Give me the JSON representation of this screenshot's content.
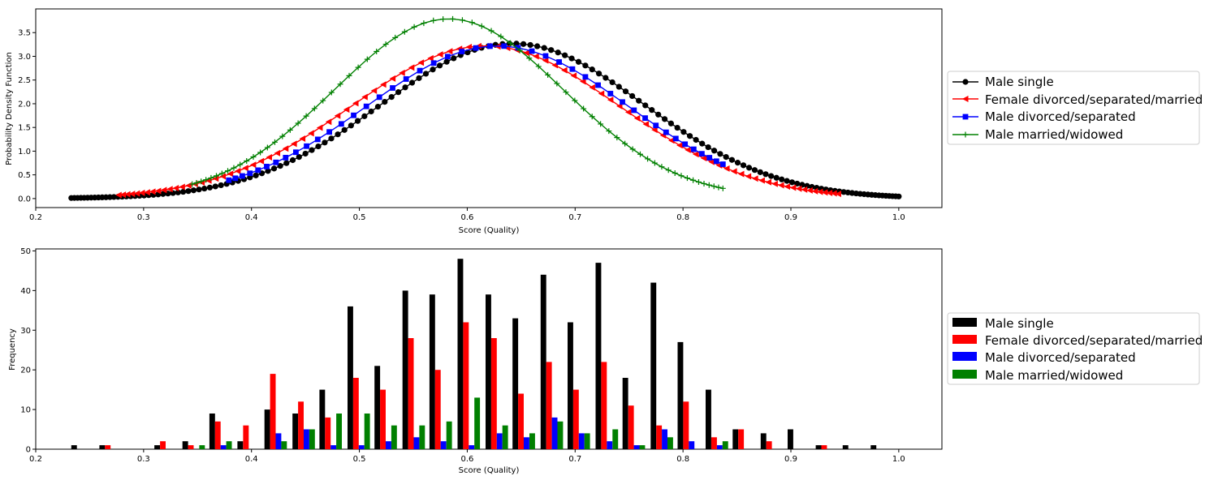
{
  "colors": {
    "male_single": "#000000",
    "female_dsm": "#ff0000",
    "male_ds": "#0000ff",
    "male_mw": "#008000"
  },
  "chart_data": [
    {
      "type": "line",
      "xlabel": "Score (Quality)",
      "ylabel": "Probability Density Function",
      "xlim": [
        0.2,
        1.04
      ],
      "ylim": [
        -0.19,
        4.0
      ],
      "xticks": [
        "0.2",
        "0.3",
        "0.4",
        "0.5",
        "0.6",
        "0.7",
        "0.8",
        "0.9",
        "1.0"
      ],
      "yticks": [
        "0.0",
        "0.5",
        "1.0",
        "1.5",
        "2.0",
        "2.5",
        "3.0",
        "3.5"
      ],
      "legend_position": "right",
      "series": [
        {
          "name": "Male single",
          "marker": "circle",
          "color": "#000000",
          "mean": 0.642,
          "sd": 0.122,
          "peak": 3.27,
          "x_range": [
            0.233,
            1.0
          ],
          "n_points": 150
        },
        {
          "name": "Female divorced/separated/married",
          "marker": "triangle-left",
          "color": "#ff0000",
          "mean": 0.617,
          "sd": 0.124,
          "peak": 3.22,
          "x_range": [
            0.277,
            0.944
          ],
          "n_points": 95
        },
        {
          "name": "Male divorced/separated",
          "marker": "square",
          "color": "#0000ff",
          "mean": 0.628,
          "sd": 0.121,
          "peak": 3.22,
          "x_range": [
            0.379,
            0.837
          ],
          "n_points": 45
        },
        {
          "name": "Male married/widowed",
          "marker": "plus",
          "color": "#008000",
          "mean": 0.583,
          "sd": 0.106,
          "peak": 3.79,
          "x_range": [
            0.345,
            0.837
          ],
          "n_points": 70
        }
      ]
    },
    {
      "type": "bar",
      "xlabel": "Score (Quality)",
      "ylabel": "Frequency",
      "xlim": [
        0.2,
        1.04
      ],
      "ylim": [
        0,
        50.5
      ],
      "xticks": [
        "0.2",
        "0.3",
        "0.4",
        "0.5",
        "0.6",
        "0.7",
        "0.8",
        "0.9",
        "1.0"
      ],
      "yticks": [
        "0",
        "10",
        "20",
        "30",
        "40",
        "50"
      ],
      "legend_position": "right",
      "bin_starts": [
        0.233,
        0.259,
        0.284,
        0.31,
        0.336,
        0.361,
        0.387,
        0.412,
        0.438,
        0.463,
        0.489,
        0.514,
        0.54,
        0.565,
        0.591,
        0.617,
        0.642,
        0.668,
        0.693,
        0.719,
        0.744,
        0.77,
        0.795,
        0.821,
        0.846,
        0.872,
        0.897,
        0.923,
        0.948,
        0.974
      ],
      "series": [
        {
          "name": "Male single",
          "color": "#000000",
          "values": [
            1,
            1,
            0,
            1,
            2,
            9,
            2,
            10,
            9,
            15,
            36,
            21,
            40,
            39,
            48,
            39,
            33,
            44,
            32,
            47,
            18,
            42,
            27,
            15,
            5,
            4,
            5,
            1,
            1,
            1
          ]
        },
        {
          "name": "Female divorced/separated/married",
          "color": "#ff0000",
          "values": [
            0,
            1,
            0,
            2,
            1,
            7,
            6,
            19,
            12,
            8,
            18,
            15,
            28,
            20,
            32,
            28,
            14,
            22,
            15,
            22,
            11,
            6,
            12,
            3,
            5,
            2,
            0,
            1,
            0,
            0
          ]
        },
        {
          "name": "Male divorced/separated",
          "color": "#0000ff",
          "values": [
            0,
            0,
            0,
            0,
            0,
            1,
            0,
            4,
            5,
            1,
            1,
            2,
            3,
            2,
            1,
            4,
            3,
            8,
            4,
            2,
            1,
            5,
            2,
            1,
            0,
            0,
            0,
            0,
            0,
            0
          ]
        },
        {
          "name": "Male married/widowed",
          "color": "#008000",
          "values": [
            0,
            0,
            0,
            0,
            1,
            2,
            0,
            2,
            5,
            9,
            9,
            6,
            6,
            7,
            13,
            6,
            4,
            7,
            4,
            5,
            1,
            3,
            0,
            2,
            0,
            0,
            0,
            0,
            0,
            0
          ]
        }
      ]
    }
  ]
}
